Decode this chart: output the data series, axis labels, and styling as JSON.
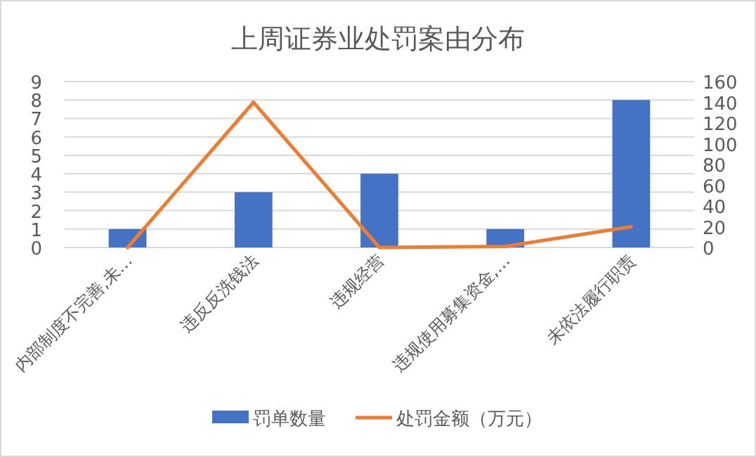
{
  "chart_data": {
    "type": "bar",
    "title": "上周证券业处罚案由分布",
    "categories": [
      "内部制度不完善,未…",
      "违反反洗钱法",
      "违规经营",
      "违规使用募集资金,…",
      "未依法履行职责"
    ],
    "series": [
      {
        "name": "罚单数量",
        "color": "#4472c4",
        "type": "bar",
        "values": [
          1,
          3,
          4,
          1,
          8
        ]
      },
      {
        "name": "处罚金额（万元）",
        "color": "#ed7d31",
        "type": "line",
        "axis": "y2",
        "values": [
          0,
          140,
          0,
          1,
          20
        ]
      }
    ],
    "ylim": [
      0,
      9
    ],
    "yticks": [
      0,
      1,
      2,
      3,
      4,
      5,
      6,
      7,
      8,
      9
    ],
    "y2lim": [
      0,
      160
    ],
    "y2ticks": [
      0,
      20,
      40,
      60,
      80,
      100,
      120,
      140,
      160
    ],
    "grid": "y",
    "legend": "bottom"
  }
}
